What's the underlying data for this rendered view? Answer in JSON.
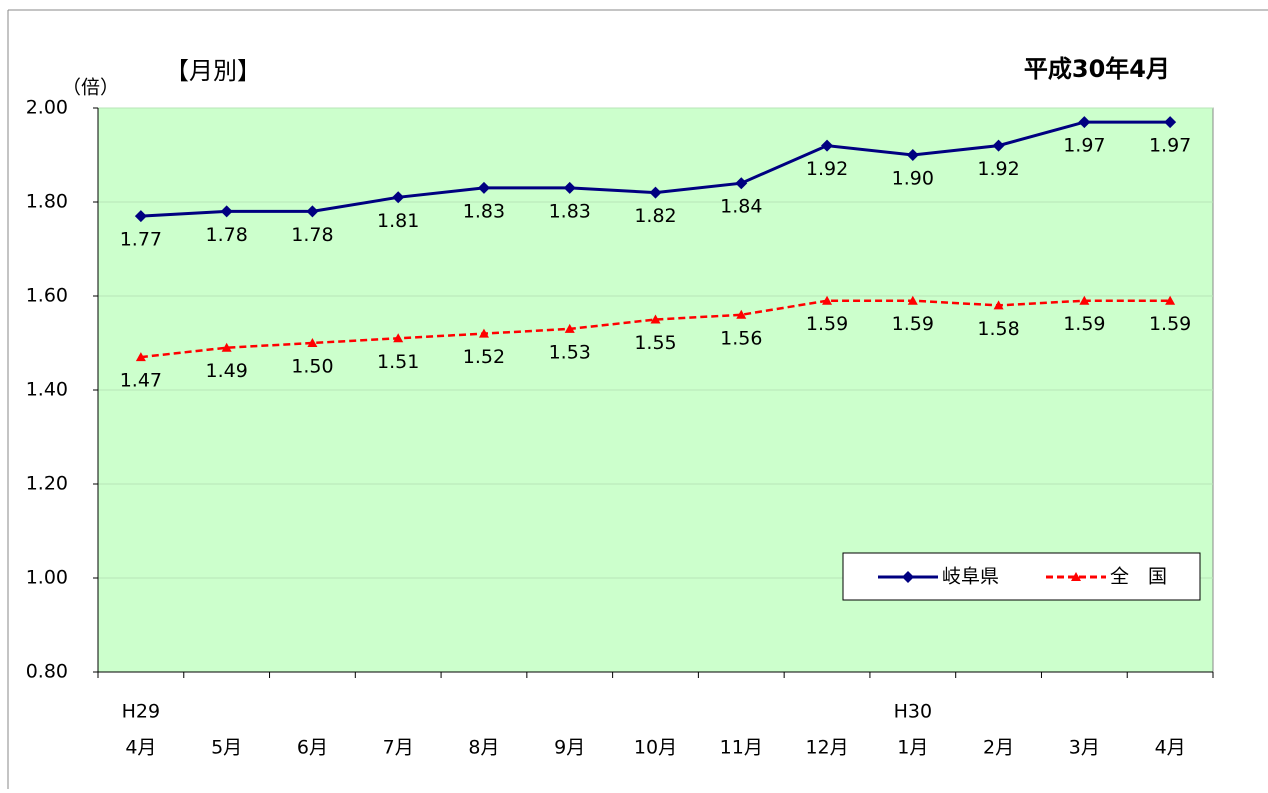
{
  "chart_data": {
    "type": "line",
    "title": "【月別】",
    "subtitle": "平成30年4月",
    "y_label": "（倍）",
    "categories": [
      "4月",
      "5月",
      "6月",
      "7月",
      "8月",
      "9月",
      "10月",
      "11月",
      "12月",
      "1月",
      "2月",
      "3月",
      "4月"
    ],
    "era_labels": [
      "H29",
      null,
      null,
      null,
      null,
      null,
      null,
      null,
      null,
      "H30",
      null,
      null,
      null
    ],
    "series": [
      {
        "name": "岐阜県",
        "color": "#000080",
        "marker": "diamond",
        "dash": false,
        "values": [
          1.77,
          1.78,
          1.78,
          1.81,
          1.83,
          1.83,
          1.82,
          1.84,
          1.92,
          1.9,
          1.92,
          1.97,
          1.97
        ],
        "value_labels": [
          "1.77",
          "1.78",
          "1.78",
          "1.81",
          "1.83",
          "1.83",
          "1.82",
          "1.84",
          "1.92",
          "1.90",
          "1.92",
          "1.97",
          "1.97"
        ]
      },
      {
        "name": "全　国",
        "color": "#ff0000",
        "marker": "triangle",
        "dash": true,
        "values": [
          1.47,
          1.49,
          1.5,
          1.51,
          1.52,
          1.53,
          1.55,
          1.56,
          1.59,
          1.59,
          1.58,
          1.59,
          1.59
        ],
        "value_labels": [
          "1.47",
          "1.49",
          "1.50",
          "1.51",
          "1.52",
          "1.53",
          "1.55",
          "1.56",
          "1.59",
          "1.59",
          "1.58",
          "1.59",
          "1.59"
        ]
      }
    ],
    "ylim": [
      0.8,
      2.0
    ],
    "yticks": [
      {
        "value": 0.8,
        "label": "0.80"
      },
      {
        "value": 1.0,
        "label": "1.00"
      },
      {
        "value": 1.2,
        "label": "1.20"
      },
      {
        "value": 1.4,
        "label": "1.40"
      },
      {
        "value": 1.6,
        "label": "1.60"
      },
      {
        "value": 1.8,
        "label": "1.80"
      },
      {
        "value": 2.0,
        "label": "2.00"
      }
    ],
    "grid": true,
    "legend": "lower-right",
    "plot_color": "#ccffcc"
  }
}
